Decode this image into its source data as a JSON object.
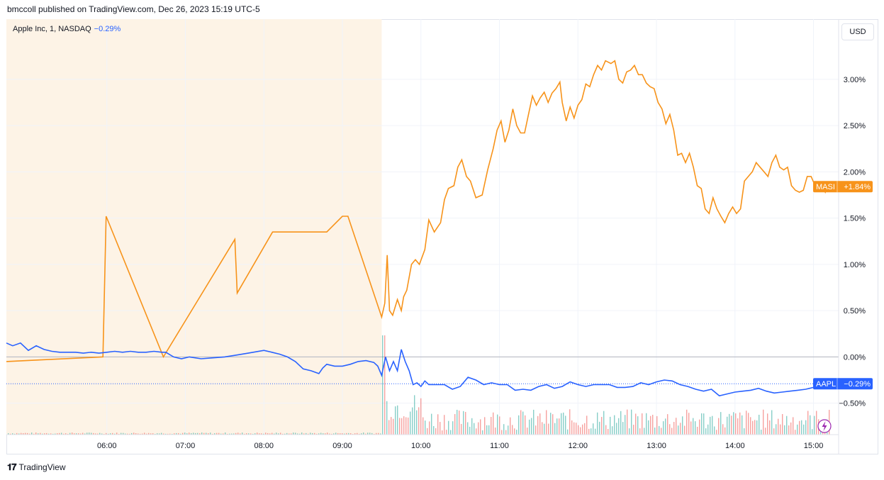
{
  "header": {
    "attribution": "bmccoll published on TradingView.com, Dec 26, 2023 15:19 UTC-5"
  },
  "legend": {
    "symbol_text": "Apple Inc, 1, NASDAQ",
    "change": "−0.29%"
  },
  "currency_button": "USD",
  "footer": {
    "logo": "𝟏𝟕",
    "brand": "TradingView"
  },
  "colors": {
    "masi": "#f7931a",
    "aapl": "#2962ff",
    "premarket_shade": "#fdf3e6",
    "grid": "#f0f3fa",
    "volume_up": "#26a69a",
    "volume_down": "#ef5350"
  },
  "chart_data": {
    "type": "line",
    "y_unit": "%",
    "ylim": [
      -0.84,
      3.65
    ],
    "x_ticks": [
      "06:00",
      "07:00",
      "08:00",
      "09:00",
      "10:00",
      "11:00",
      "12:00",
      "13:00",
      "14:00",
      "15:00"
    ],
    "y_ticks": [
      "3.00%",
      "2.50%",
      "2.00%",
      "1.50%",
      "1.00%",
      "0.50%",
      "0.00%",
      "−0.50%"
    ],
    "x_range_hours": [
      4.72,
      15.32
    ],
    "premarket_end_hour": 9.5,
    "series": [
      {
        "name": "MASI",
        "last_label": "+1.84%",
        "points": [
          [
            4.72,
            -0.05
          ],
          [
            5.95,
            0.0
          ],
          [
            5.99,
            1.52
          ],
          [
            6.72,
            0.0
          ],
          [
            7.63,
            1.27
          ],
          [
            7.66,
            0.69
          ],
          [
            8.11,
            1.35
          ],
          [
            8.8,
            1.35
          ],
          [
            9.0,
            1.52
          ],
          [
            9.07,
            1.52
          ],
          [
            9.5,
            0.43
          ],
          [
            9.54,
            0.58
          ],
          [
            9.57,
            1.1
          ],
          [
            9.6,
            0.5
          ],
          [
            9.64,
            0.45
          ],
          [
            9.7,
            0.62
          ],
          [
            9.75,
            0.5
          ],
          [
            9.78,
            0.65
          ],
          [
            9.82,
            0.72
          ],
          [
            9.88,
            1.0
          ],
          [
            9.93,
            1.05
          ],
          [
            9.98,
            1.0
          ],
          [
            10.05,
            1.16
          ],
          [
            10.1,
            1.48
          ],
          [
            10.17,
            1.35
          ],
          [
            10.25,
            1.45
          ],
          [
            10.3,
            1.7
          ],
          [
            10.35,
            1.82
          ],
          [
            10.42,
            1.85
          ],
          [
            10.47,
            2.05
          ],
          [
            10.52,
            2.13
          ],
          [
            10.58,
            1.95
          ],
          [
            10.63,
            1.9
          ],
          [
            10.7,
            1.72
          ],
          [
            10.78,
            1.75
          ],
          [
            10.85,
            2.02
          ],
          [
            10.92,
            2.25
          ],
          [
            10.97,
            2.45
          ],
          [
            11.02,
            2.55
          ],
          [
            11.07,
            2.32
          ],
          [
            11.12,
            2.45
          ],
          [
            11.17,
            2.68
          ],
          [
            11.22,
            2.5
          ],
          [
            11.27,
            2.42
          ],
          [
            11.32,
            2.42
          ],
          [
            11.37,
            2.62
          ],
          [
            11.42,
            2.82
          ],
          [
            11.47,
            2.72
          ],
          [
            11.52,
            2.8
          ],
          [
            11.57,
            2.86
          ],
          [
            11.62,
            2.75
          ],
          [
            11.67,
            2.85
          ],
          [
            11.72,
            2.9
          ],
          [
            11.77,
            2.97
          ],
          [
            11.8,
            2.75
          ],
          [
            11.85,
            2.55
          ],
          [
            11.9,
            2.7
          ],
          [
            11.95,
            2.58
          ],
          [
            12.0,
            2.72
          ],
          [
            12.05,
            2.78
          ],
          [
            12.1,
            2.95
          ],
          [
            12.15,
            2.92
          ],
          [
            12.2,
            3.05
          ],
          [
            12.25,
            3.15
          ],
          [
            12.3,
            3.1
          ],
          [
            12.35,
            3.2
          ],
          [
            12.42,
            3.17
          ],
          [
            12.47,
            3.2
          ],
          [
            12.52,
            3.0
          ],
          [
            12.57,
            2.96
          ],
          [
            12.62,
            3.08
          ],
          [
            12.67,
            3.1
          ],
          [
            12.72,
            3.15
          ],
          [
            12.77,
            3.05
          ],
          [
            12.82,
            3.05
          ],
          [
            12.87,
            2.96
          ],
          [
            12.92,
            2.92
          ],
          [
            12.97,
            2.9
          ],
          [
            13.02,
            2.75
          ],
          [
            13.07,
            2.68
          ],
          [
            13.12,
            2.52
          ],
          [
            13.17,
            2.62
          ],
          [
            13.22,
            2.45
          ],
          [
            13.27,
            2.18
          ],
          [
            13.32,
            2.2
          ],
          [
            13.37,
            2.1
          ],
          [
            13.42,
            2.2
          ],
          [
            13.47,
            2.05
          ],
          [
            13.52,
            1.85
          ],
          [
            13.57,
            1.82
          ],
          [
            13.62,
            1.6
          ],
          [
            13.67,
            1.55
          ],
          [
            13.72,
            1.72
          ],
          [
            13.77,
            1.6
          ],
          [
            13.82,
            1.52
          ],
          [
            13.87,
            1.45
          ],
          [
            13.92,
            1.55
          ],
          [
            13.97,
            1.62
          ],
          [
            14.02,
            1.55
          ],
          [
            14.07,
            1.6
          ],
          [
            14.12,
            1.9
          ],
          [
            14.17,
            1.95
          ],
          [
            14.22,
            2.0
          ],
          [
            14.27,
            2.1
          ],
          [
            14.32,
            2.05
          ],
          [
            14.37,
            2.0
          ],
          [
            14.42,
            1.95
          ],
          [
            14.47,
            2.1
          ],
          [
            14.52,
            2.18
          ],
          [
            14.57,
            2.05
          ],
          [
            14.62,
            2.02
          ],
          [
            14.67,
            2.05
          ],
          [
            14.72,
            1.85
          ],
          [
            14.77,
            1.8
          ],
          [
            14.82,
            1.78
          ],
          [
            14.87,
            1.8
          ],
          [
            14.92,
            1.95
          ],
          [
            14.97,
            1.95
          ],
          [
            15.02,
            1.85
          ],
          [
            15.07,
            1.8
          ],
          [
            15.12,
            1.84
          ],
          [
            15.15,
            1.78
          ],
          [
            15.18,
            1.84
          ]
        ]
      },
      {
        "name": "AAPL",
        "last_label": "−0.29%",
        "points": [
          [
            4.72,
            0.15
          ],
          [
            4.8,
            0.12
          ],
          [
            4.9,
            0.15
          ],
          [
            5.0,
            0.07
          ],
          [
            5.1,
            0.12
          ],
          [
            5.2,
            0.08
          ],
          [
            5.3,
            0.06
          ],
          [
            5.4,
            0.05
          ],
          [
            5.5,
            0.05
          ],
          [
            5.6,
            0.05
          ],
          [
            5.7,
            0.04
          ],
          [
            5.8,
            0.05
          ],
          [
            5.9,
            0.04
          ],
          [
            6.0,
            0.05
          ],
          [
            6.1,
            0.06
          ],
          [
            6.2,
            0.05
          ],
          [
            6.3,
            0.06
          ],
          [
            6.4,
            0.05
          ],
          [
            6.5,
            0.05
          ],
          [
            6.6,
            0.06
          ],
          [
            6.7,
            0.05
          ],
          [
            6.75,
            0.05
          ],
          [
            6.85,
            0.0
          ],
          [
            6.95,
            -0.02
          ],
          [
            7.05,
            0.0
          ],
          [
            7.2,
            -0.02
          ],
          [
            7.35,
            -0.01
          ],
          [
            7.5,
            0.0
          ],
          [
            7.65,
            0.02
          ],
          [
            7.8,
            0.04
          ],
          [
            8.0,
            0.07
          ],
          [
            8.1,
            0.05
          ],
          [
            8.2,
            0.03
          ],
          [
            8.3,
            0.0
          ],
          [
            8.4,
            -0.05
          ],
          [
            8.5,
            -0.13
          ],
          [
            8.6,
            -0.15
          ],
          [
            8.7,
            -0.18
          ],
          [
            8.75,
            -0.12
          ],
          [
            8.8,
            -0.08
          ],
          [
            8.9,
            -0.1
          ],
          [
            9.0,
            -0.1
          ],
          [
            9.1,
            -0.08
          ],
          [
            9.2,
            -0.05
          ],
          [
            9.3,
            -0.04
          ],
          [
            9.4,
            -0.06
          ],
          [
            9.45,
            -0.1
          ],
          [
            9.5,
            -0.2
          ],
          [
            9.55,
            0.0
          ],
          [
            9.6,
            -0.15
          ],
          [
            9.65,
            -0.05
          ],
          [
            9.7,
            -0.15
          ],
          [
            9.75,
            0.08
          ],
          [
            9.8,
            -0.05
          ],
          [
            9.85,
            -0.15
          ],
          [
            9.9,
            -0.3
          ],
          [
            9.95,
            -0.28
          ],
          [
            10.0,
            -0.32
          ],
          [
            10.05,
            -0.26
          ],
          [
            10.1,
            -0.3
          ],
          [
            10.2,
            -0.3
          ],
          [
            10.3,
            -0.3
          ],
          [
            10.4,
            -0.35
          ],
          [
            10.5,
            -0.32
          ],
          [
            10.6,
            -0.22
          ],
          [
            10.7,
            -0.25
          ],
          [
            10.8,
            -0.3
          ],
          [
            10.9,
            -0.28
          ],
          [
            11.0,
            -0.3
          ],
          [
            11.1,
            -0.3
          ],
          [
            11.2,
            -0.36
          ],
          [
            11.3,
            -0.35
          ],
          [
            11.4,
            -0.36
          ],
          [
            11.5,
            -0.32
          ],
          [
            11.6,
            -0.3
          ],
          [
            11.7,
            -0.34
          ],
          [
            11.8,
            -0.32
          ],
          [
            11.9,
            -0.27
          ],
          [
            12.0,
            -0.3
          ],
          [
            12.1,
            -0.32
          ],
          [
            12.2,
            -0.3
          ],
          [
            12.3,
            -0.3
          ],
          [
            12.4,
            -0.3
          ],
          [
            12.5,
            -0.33
          ],
          [
            12.6,
            -0.33
          ],
          [
            12.7,
            -0.32
          ],
          [
            12.8,
            -0.28
          ],
          [
            12.9,
            -0.3
          ],
          [
            13.0,
            -0.27
          ],
          [
            13.1,
            -0.25
          ],
          [
            13.2,
            -0.26
          ],
          [
            13.3,
            -0.3
          ],
          [
            13.4,
            -0.32
          ],
          [
            13.5,
            -0.35
          ],
          [
            13.6,
            -0.37
          ],
          [
            13.7,
            -0.35
          ],
          [
            13.8,
            -0.42
          ],
          [
            13.9,
            -0.4
          ],
          [
            14.0,
            -0.38
          ],
          [
            14.1,
            -0.37
          ],
          [
            14.2,
            -0.36
          ],
          [
            14.3,
            -0.34
          ],
          [
            14.4,
            -0.37
          ],
          [
            14.5,
            -0.39
          ],
          [
            14.6,
            -0.38
          ],
          [
            14.7,
            -0.37
          ],
          [
            14.8,
            -0.36
          ],
          [
            14.9,
            -0.35
          ],
          [
            15.0,
            -0.33
          ],
          [
            15.1,
            -0.31
          ],
          [
            15.18,
            -0.29
          ]
        ]
      }
    ]
  }
}
